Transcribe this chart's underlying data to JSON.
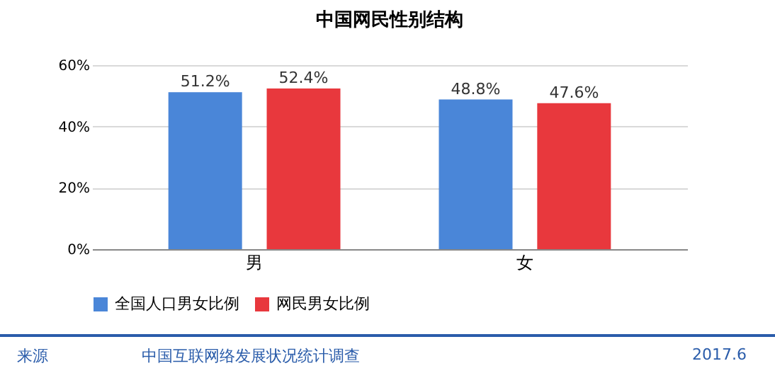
{
  "chart_data": {
    "type": "bar",
    "title": "中国网民性别结构",
    "categories": [
      "男",
      "女"
    ],
    "series": [
      {
        "name": "全国人口男女比例",
        "color": "#4a86d8",
        "values": [
          51.2,
          48.8
        ],
        "value_labels": [
          "51.2%",
          "48.8%"
        ]
      },
      {
        "name": "网民男女比例",
        "color": "#e8383d",
        "values": [
          52.4,
          47.6
        ],
        "value_labels": [
          "52.4%",
          "47.6%"
        ]
      }
    ],
    "ylim": [
      0,
      60
    ],
    "yticks": [
      {
        "value": 0,
        "label": "0%"
      },
      {
        "value": 20,
        "label": "20%"
      },
      {
        "value": 40,
        "label": "40%"
      },
      {
        "value": 60,
        "label": "60%"
      }
    ],
    "grid": "y",
    "legend": "bottom",
    "annotations": [
      "来源",
      "中国互联网络发展状况统计调查",
      "2017.6"
    ]
  }
}
